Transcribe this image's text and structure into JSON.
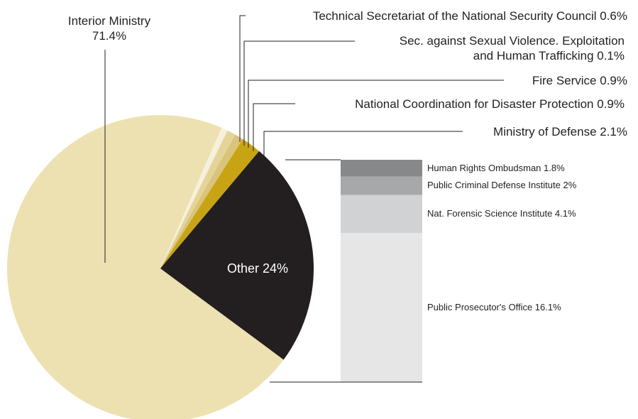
{
  "chart_data": [
    {
      "type": "pie",
      "slices": [
        {
          "name": "Interior Ministry",
          "value": 71.4,
          "label": "71.4%",
          "color": "#ede1b2"
        },
        {
          "name": "Technical Secretariat of the National Security Council",
          "value": 0.6,
          "label": "0.6%",
          "color": "#f7f0dc"
        },
        {
          "name": "Sec. against Sexual Violence. Exploitation and Human Trafficking",
          "value": 0.1,
          "label": "0.1%",
          "color": "#f1e6c4"
        },
        {
          "name": "Fire Service",
          "value": 0.9,
          "label": "0.9%",
          "color": "#e4d49a"
        },
        {
          "name": "National Coordination for Disaster Protection",
          "value": 0.9,
          "label": "0.9%",
          "color": "#d9c47a"
        },
        {
          "name": "Ministry of Defense",
          "value": 2.1,
          "label": "2.1%",
          "color": "#c8a414"
        },
        {
          "name": "Other",
          "value": 24,
          "label": "24%",
          "color": "#231f20"
        }
      ],
      "labels": {
        "interior_line1": "Interior Ministry",
        "interior_line2": "71.4%",
        "technical": "Technical Secretariat of the National Security Council 0.6%",
        "sexual_line1": "Sec. against Sexual Violence. Exploitation",
        "sexual_line2": "and Human Trafficking 0.1%",
        "fire": "Fire Service 0.9%",
        "disaster": "National Coordination for Disaster Protection 0.9%",
        "defense": "Ministry of Defense 2.1%",
        "other": "Other 24%"
      }
    },
    {
      "type": "bar",
      "stacked": true,
      "breakdown_of": "Other",
      "segments": [
        {
          "name": "Human Rights Ombudsman",
          "value": 1.8,
          "label": "Human Rights Ombudsman 1.8%",
          "color": "#87888a"
        },
        {
          "name": "Public Criminal Defense Institute",
          "value": 2,
          "label": "Public Criminal Defense Institute 2%",
          "color": "#a7a8aa"
        },
        {
          "name": "Nat. Forensic Science Institute",
          "value": 4.1,
          "label": "Nat. Forensic Science Institute 4.1%",
          "color": "#d1d2d3"
        },
        {
          "name": "Public Prosecutor's Office",
          "value": 16.1,
          "label": "Public Prosecutor's Office 16.1%",
          "color": "#e6e6e7"
        }
      ]
    }
  ]
}
